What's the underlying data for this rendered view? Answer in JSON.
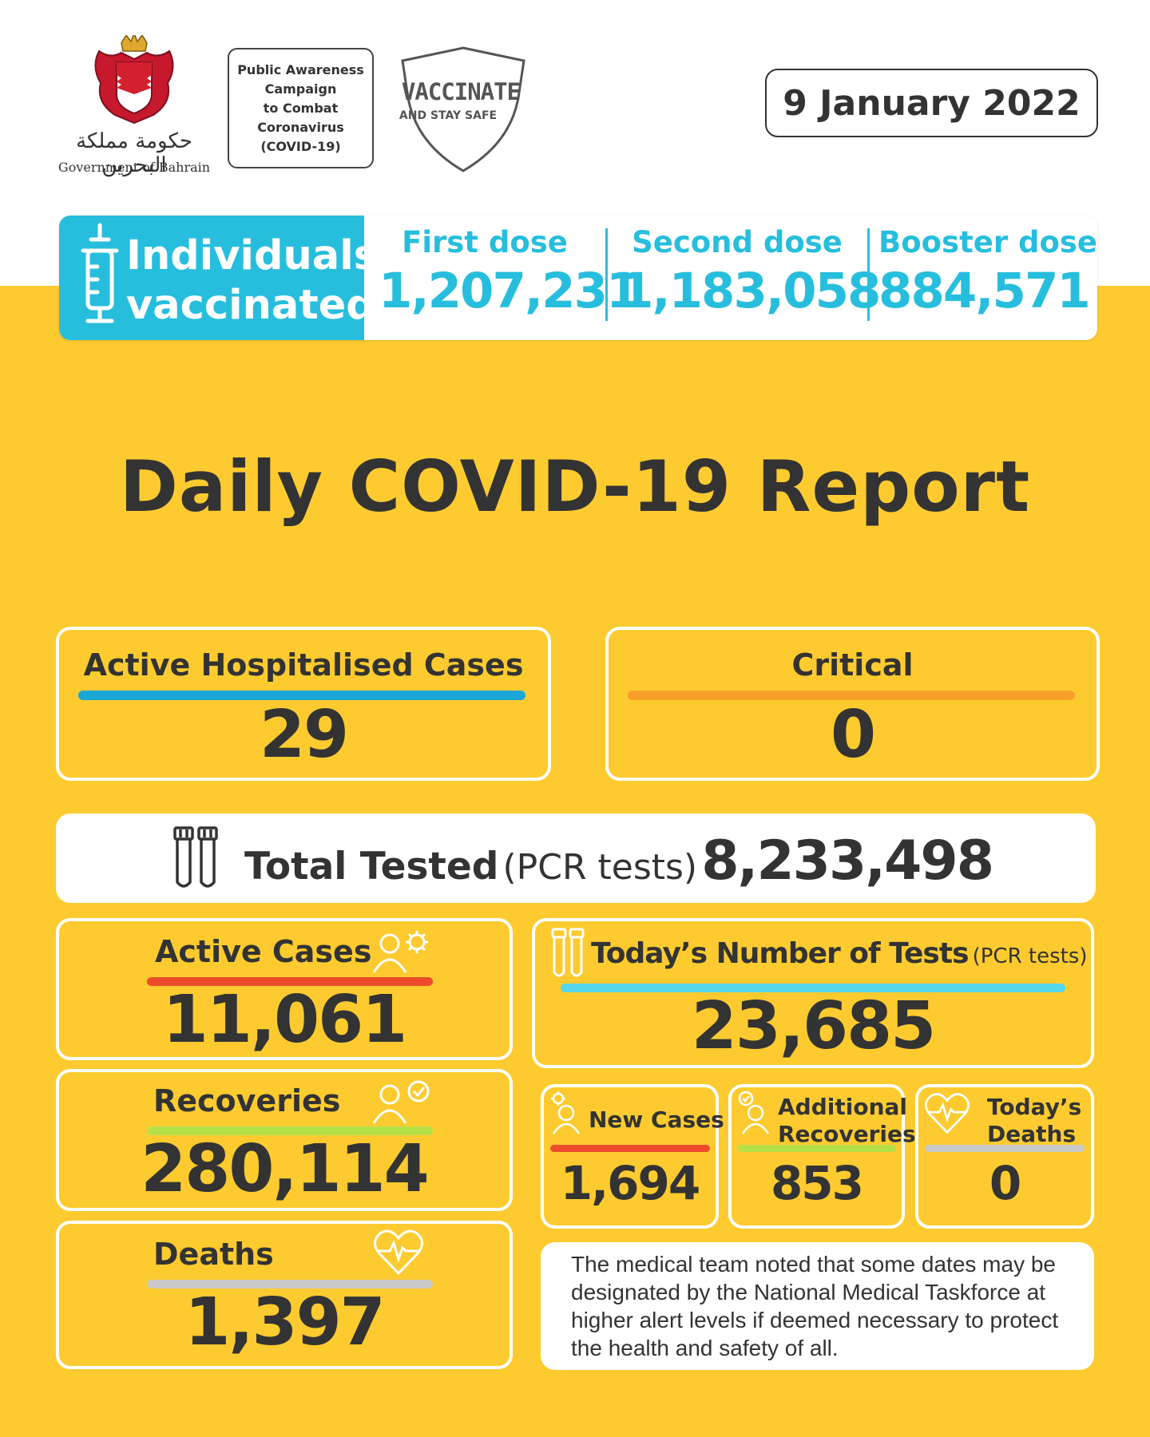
{
  "header": {
    "government_arabic": "حكومة مملكة البحرين",
    "government_english": "Government of Bahrain",
    "campaign_lines": [
      "Public Awareness",
      "Campaign",
      "to Combat",
      "Coronavirus",
      "(COVID-19)"
    ],
    "vaccinate_title": "VACCINATE",
    "vaccinate_subtitle": "AND STAY SAFE",
    "date": "9 January 2022"
  },
  "vaccination": {
    "label_line1": "Individuals",
    "label_line2": "vaccinated",
    "doses": [
      {
        "name": "First dose",
        "value": "1,207,231"
      },
      {
        "name": "Second dose",
        "value": "1,183,058"
      },
      {
        "name": "Booster dose",
        "value": "884,571"
      }
    ]
  },
  "title": "Daily COVID-19 Report",
  "hospitalised": {
    "label": "Active Hospitalised Cases",
    "value": "29"
  },
  "critical": {
    "label": "Critical",
    "value": "0"
  },
  "total_tested": {
    "label": "Total Tested",
    "qualifier": "(PCR tests)",
    "value": "8,233,498"
  },
  "active_cases": {
    "label": "Active Cases",
    "value": "11,061"
  },
  "recoveries": {
    "label": "Recoveries",
    "value": "280,114"
  },
  "deaths": {
    "label": "Deaths",
    "value": "1,397"
  },
  "todays_tests": {
    "label": "Today’s Number of Tests",
    "qualifier": "(PCR tests)",
    "value": "23,685"
  },
  "new_cases": {
    "label": "New Cases",
    "value": "1,694"
  },
  "additional_recoveries": {
    "label_line1": "Additional",
    "label_line2": "Recoveries",
    "value": "853"
  },
  "todays_deaths": {
    "label_line1": "Today’s",
    "label_line2": "Deaths",
    "value": "0"
  },
  "note": "The medical team noted that some dates may be designated by the National Medical Taskforce at higher alert levels if deemed necessary to protect the health and safety of all.",
  "colors": {
    "background_yellow": "#fdcb2f",
    "vaccine_blue": "#27bedd",
    "hospital_bar": "#1ba7d6",
    "critical_bar": "#f6a02a",
    "active_bar": "#ee4b2d",
    "recovery_bar": "#b6e04a",
    "deaths_bar": "#c9c9c9",
    "tests_bar": "#55d6ea"
  }
}
